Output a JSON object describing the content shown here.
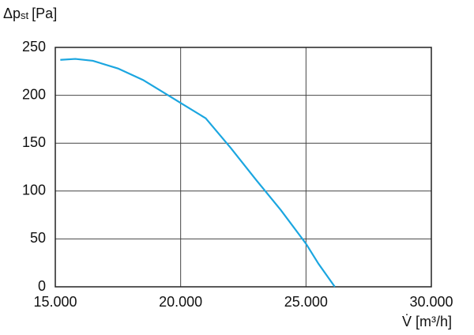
{
  "chart_data": {
    "type": "line",
    "y_label": [
      "Δp",
      "st",
      "[Pa]"
    ],
    "x_label": "V̇ [m³/h]",
    "x": [
      15200,
      15800,
      16500,
      17500,
      18500,
      19500,
      20000,
      21000,
      22000,
      23000,
      24000,
      25000,
      25500,
      26150
    ],
    "series": [
      {
        "color": "#1ba6e0",
        "values": [
          237,
          238,
          236,
          228,
          216,
          200,
          192,
          176,
          145,
          112,
          80,
          45,
          24,
          0
        ]
      }
    ],
    "xlim": [
      15000,
      30000
    ],
    "xticks": [
      {
        "value": 15000,
        "label": "15.000"
      },
      {
        "value": 20000,
        "label": "20.000"
      },
      {
        "value": 25000,
        "label": "25.000"
      },
      {
        "value": 30000,
        "label": "30.000"
      }
    ],
    "ylim": [
      0,
      250
    ],
    "yticks": [
      0,
      50,
      100,
      150,
      200,
      250
    ],
    "grid": true
  }
}
